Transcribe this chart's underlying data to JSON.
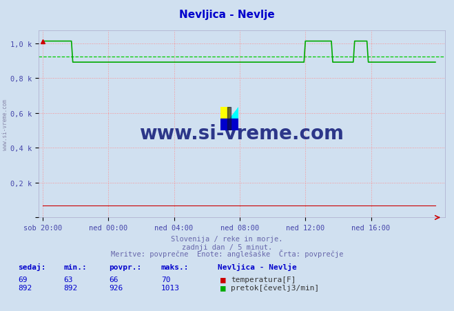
{
  "title": "Nevljica - Nevlje",
  "title_color": "#0000cc",
  "bg_color": "#d0e0f0",
  "plot_bg_color": "#d0e0f0",
  "grid_color": "#ff8888",
  "xlabel_color": "#4444aa",
  "ylabel_color": "#4444aa",
  "ymin": 0,
  "ymax": 1013,
  "yticks": [
    0,
    200,
    400,
    600,
    800,
    1000
  ],
  "ytick_labels": [
    "",
    "0,2 k",
    "0,4 k",
    "0,6 k",
    "0,8 k",
    "1,0 k"
  ],
  "xtick_labels": [
    "sob 20:00",
    "ned 00:00",
    "ned 04:00",
    "ned 08:00",
    "ned 12:00",
    "ned 16:00"
  ],
  "xtick_positions": [
    0,
    48,
    96,
    144,
    192,
    240
  ],
  "temp_color": "#cc0000",
  "flow_color": "#00aa00",
  "avg_color": "#00cc00",
  "avg_flow": 926,
  "subtitle1": "Slovenija / reke in morje.",
  "subtitle2": "zadnji dan / 5 minut.",
  "subtitle3": "Meritve: povprečne  Enote: anglešaške  Črta: povprečje",
  "subtitle_color": "#6666aa",
  "watermark": "www.si-vreme.com",
  "watermark_color": "#1a237e",
  "stat_color": "#0000cc",
  "legend_title": "Nevljica - Nevlje",
  "temp_sedaj": 69,
  "temp_min": 63,
  "temp_povpr": 66,
  "temp_maks": 70,
  "flow_sedaj": 892,
  "flow_min": 892,
  "flow_povpr": 926,
  "flow_maks": 1013,
  "n_points": 288
}
